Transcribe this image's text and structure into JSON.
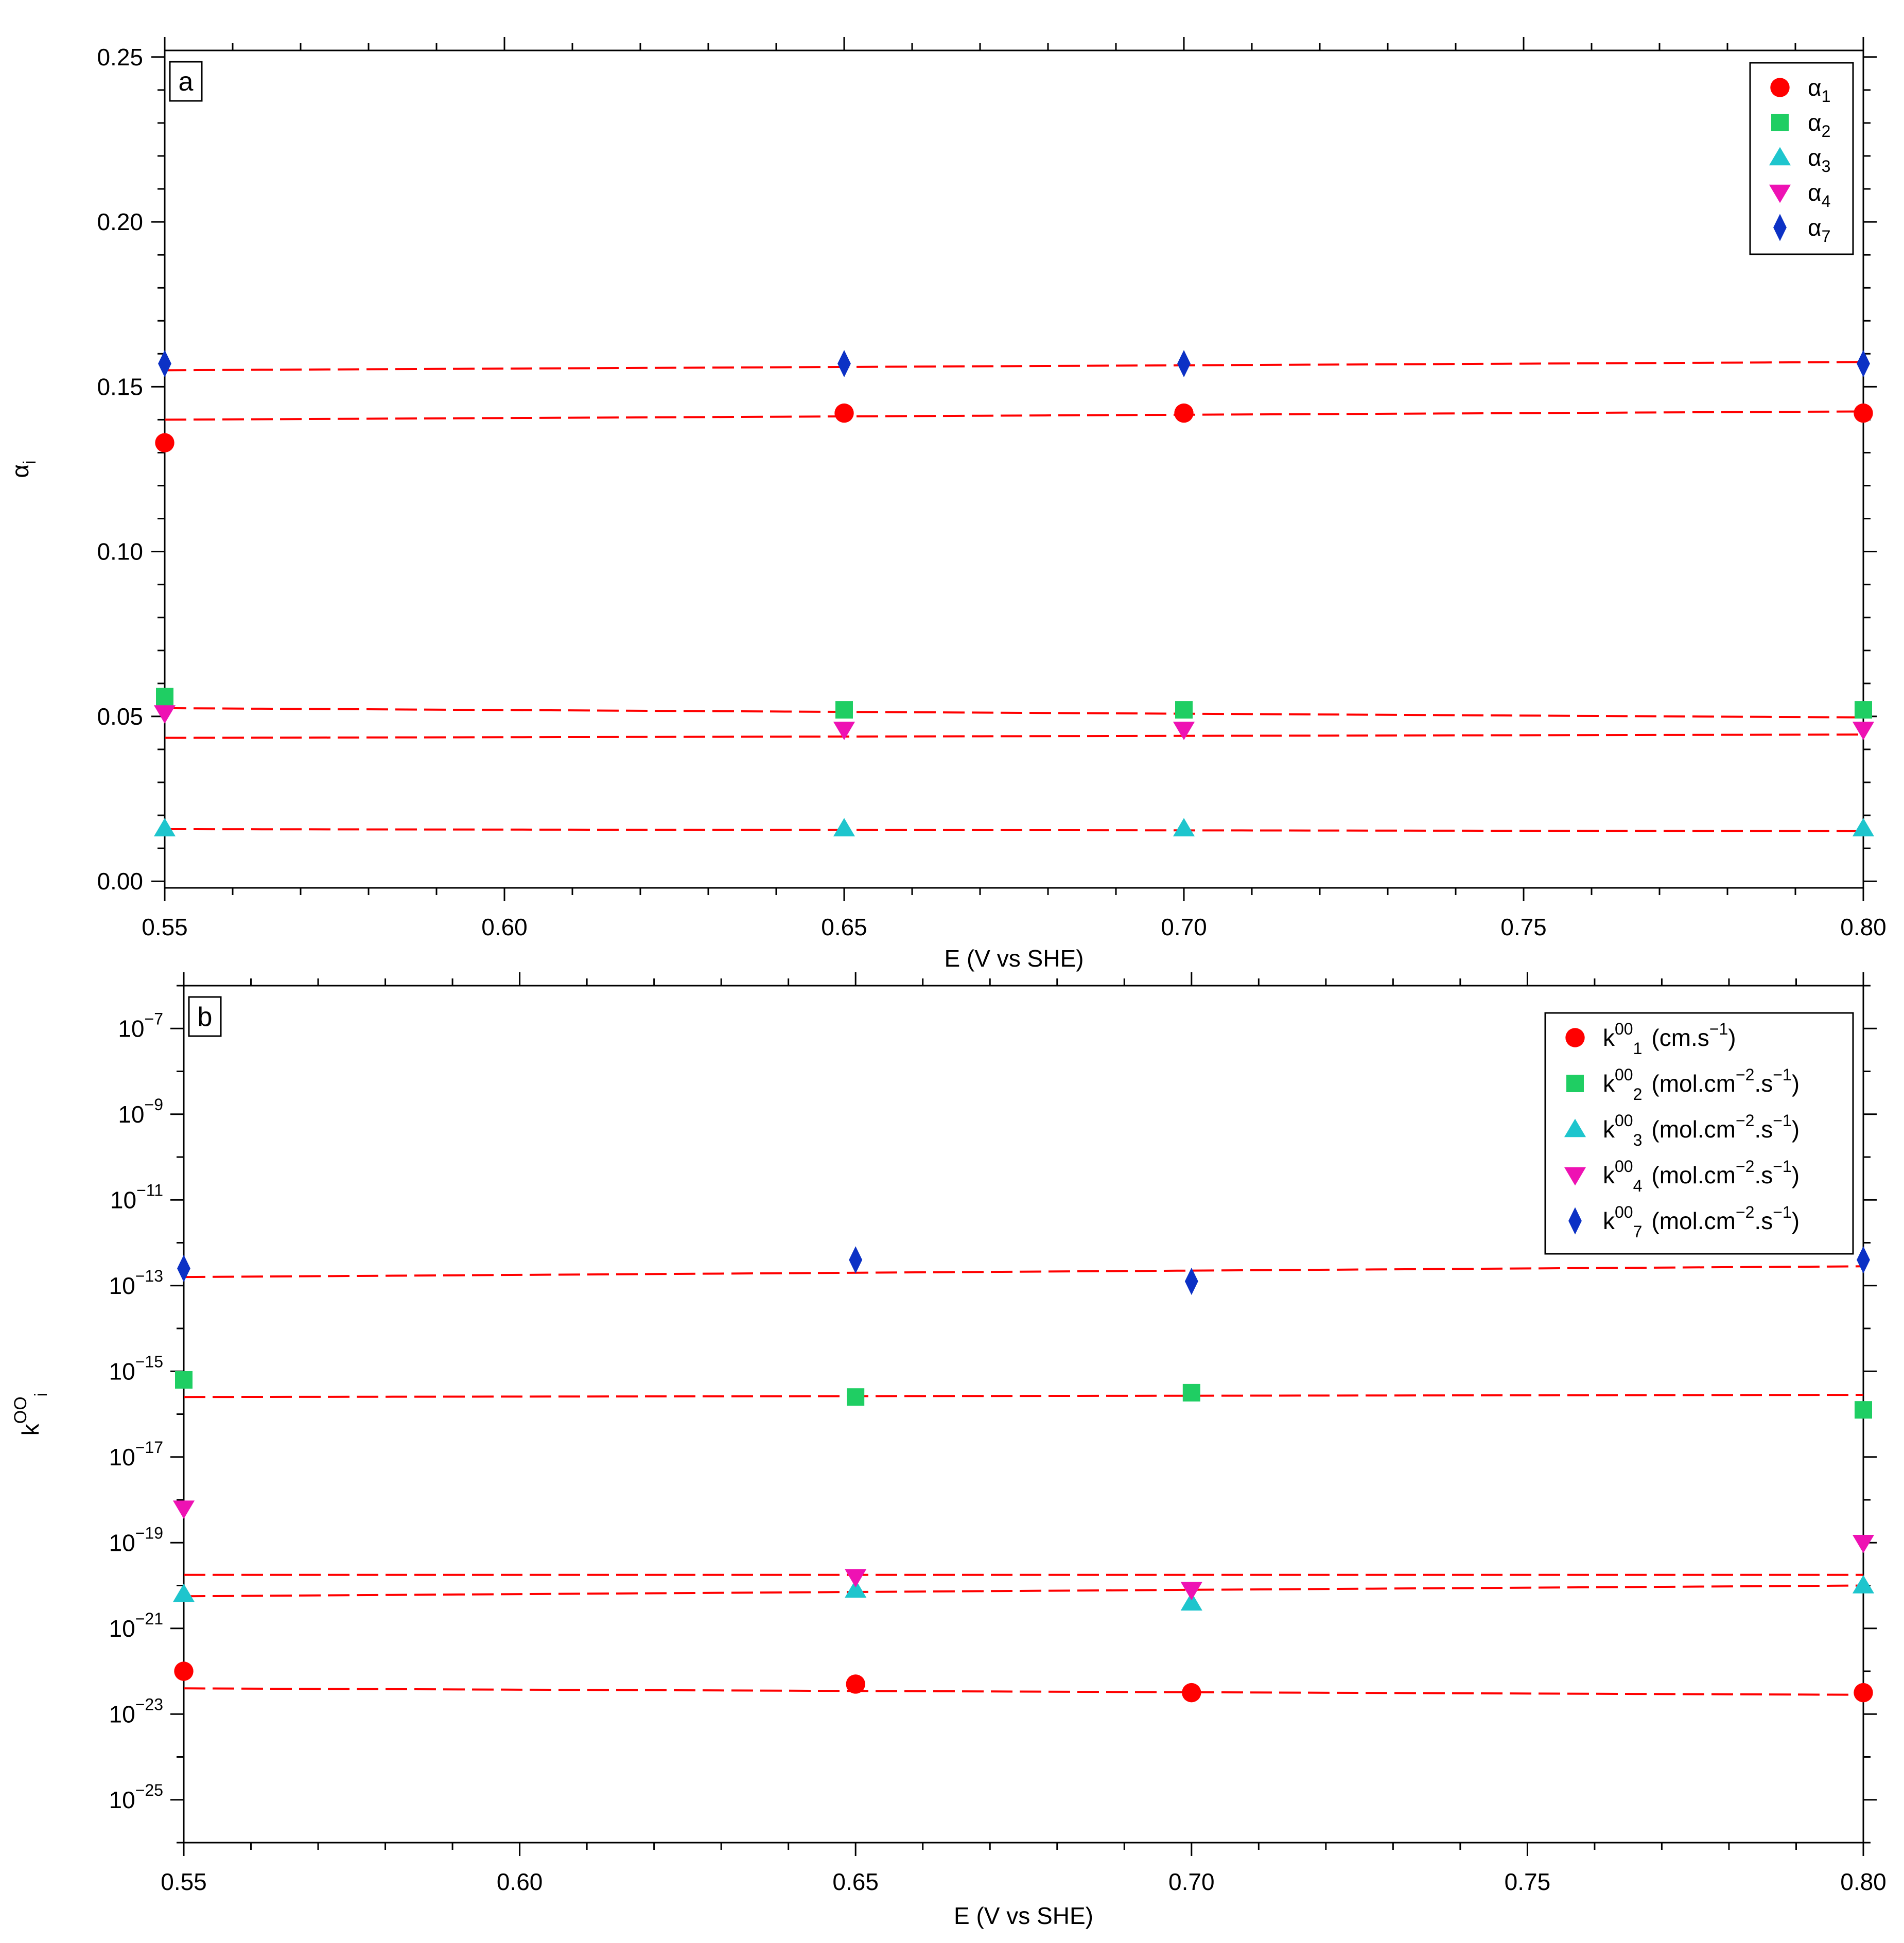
{
  "chart_data": [
    {
      "type": "scatter",
      "panel_label": "a",
      "xlabel": "E (V vs SHE)",
      "ylabel": {
        "base": "α",
        "sub": "i"
      },
      "xlim": [
        0.55,
        0.8
      ],
      "ylim": [
        -0.002,
        0.252
      ],
      "yscale": "linear",
      "xticks": [
        0.55,
        0.6,
        0.65,
        0.7,
        0.75,
        0.8
      ],
      "xtick_labels": [
        "0.55",
        "0.60",
        "0.65",
        "0.70",
        "0.75",
        "0.80"
      ],
      "yticks": [
        0.0,
        0.05,
        0.1,
        0.15,
        0.2,
        0.25
      ],
      "ytick_labels": [
        "0.00",
        "0.05",
        "0.10",
        "0.15",
        "0.20",
        "0.25"
      ],
      "x": [
        0.55,
        0.65,
        0.7,
        0.8
      ],
      "legend_position": "top-right",
      "series": [
        {
          "key": "a1",
          "base": "α",
          "sub": "1",
          "marker": "circle",
          "color": "#ff0000",
          "values": [
            0.133,
            0.142,
            0.142,
            0.142
          ],
          "fit": [
            0.14,
            0.1425
          ]
        },
        {
          "key": "a2",
          "base": "α",
          "sub": "2",
          "marker": "square",
          "color": "#1fce63",
          "values": [
            0.056,
            0.052,
            0.052,
            0.052
          ],
          "fit": [
            0.0525,
            0.0497
          ]
        },
        {
          "key": "a3",
          "base": "α",
          "sub": "3",
          "marker": "triangle-up",
          "color": "#1ec5cd",
          "values": [
            0.016,
            0.016,
            0.016,
            0.016
          ],
          "fit": [
            0.0158,
            0.0152
          ]
        },
        {
          "key": "a4",
          "base": "α",
          "sub": "4",
          "marker": "triangle-down",
          "color": "#ee12b3",
          "values": [
            0.051,
            0.046,
            0.046,
            0.046
          ],
          "fit": [
            0.0435,
            0.0445
          ]
        },
        {
          "key": "a7",
          "base": "α",
          "sub": "7",
          "marker": "diamond",
          "color": "#0c31c5",
          "values": [
            0.157,
            0.157,
            0.157,
            0.157
          ],
          "fit": [
            0.155,
            0.1575
          ]
        }
      ]
    },
    {
      "type": "scatter",
      "panel_label": "b",
      "xlabel": "E (V vs SHE)",
      "ylabel": {
        "base": "k",
        "sup": "OO",
        "sub": "i"
      },
      "xlim": [
        0.55,
        0.8
      ],
      "ylim_log10": [
        -26.0,
        -6.0
      ],
      "yscale": "log",
      "xticks": [
        0.55,
        0.6,
        0.65,
        0.7,
        0.75,
        0.8
      ],
      "xtick_labels": [
        "0.55",
        "0.60",
        "0.65",
        "0.70",
        "0.75",
        "0.80"
      ],
      "yticks_log10": [
        -25,
        -23,
        -21,
        -19,
        -17,
        -15,
        -13,
        -11,
        -9,
        -7
      ],
      "ytick_labels": [
        {
          "base": "10",
          "exp": "−25"
        },
        {
          "base": "10",
          "exp": "−23"
        },
        {
          "base": "10",
          "exp": "−21"
        },
        {
          "base": "10",
          "exp": "−19"
        },
        {
          "base": "10",
          "exp": "−17"
        },
        {
          "base": "10",
          "exp": "−15"
        },
        {
          "base": "10",
          "exp": "−13"
        },
        {
          "base": "10",
          "exp": "−11"
        },
        {
          "base": "10",
          "exp": "−9"
        },
        {
          "base": "10",
          "exp": "−7"
        }
      ],
      "x": [
        0.55,
        0.65,
        0.7,
        0.8
      ],
      "legend_position": "top-right",
      "series": [
        {
          "key": "k1",
          "base": "k",
          "sup": "00",
          "sub": "1",
          "unit": "(cm.s",
          "unit_exp": "−1",
          "unit_close": ")",
          "marker": "circle",
          "color": "#ff0000",
          "values_log10": [
            -22.0,
            -22.3,
            -22.5,
            -22.5
          ],
          "fit_log10": [
            -22.4,
            -22.55
          ]
        },
        {
          "key": "k2",
          "base": "k",
          "sup": "00",
          "sub": "2",
          "unit": "(mol.cm",
          "unit_exp": "−2",
          "unit_mid": ".s",
          "unit_exp2": "−1",
          "unit_close": ")",
          "marker": "square",
          "color": "#1fce63",
          "values_log10": [
            -15.2,
            -15.6,
            -15.5,
            -15.9
          ],
          "fit_log10": [
            -15.6,
            -15.55
          ]
        },
        {
          "key": "k3",
          "base": "k",
          "sup": "00",
          "sub": "3",
          "unit": "(mol.cm",
          "unit_exp": "−2",
          "unit_mid": ".s",
          "unit_exp2": "−1",
          "unit_close": ")",
          "marker": "triangle-up",
          "color": "#1ec5cd",
          "values_log10": [
            -20.2,
            -20.1,
            -20.4,
            -20.0
          ],
          "fit_log10": [
            -20.25,
            -20.0
          ]
        },
        {
          "key": "k4",
          "base": "k",
          "sup": "00",
          "sub": "4",
          "unit": "(mol.cm",
          "unit_exp": "−2",
          "unit_mid": ".s",
          "unit_exp2": "−1",
          "unit_close": ")",
          "marker": "triangle-down",
          "color": "#ee12b3",
          "values_log10": [
            -18.2,
            -19.8,
            -20.1,
            -19.0
          ],
          "fit_log10": [
            -19.75,
            -19.75
          ]
        },
        {
          "key": "k7",
          "base": "k",
          "sup": "00",
          "sub": "7",
          "unit": "(mol.cm",
          "unit_exp": "−2",
          "unit_mid": ".s",
          "unit_exp2": "−1",
          "unit_close": ")",
          "marker": "diamond",
          "color": "#0c31c5",
          "values_log10": [
            -12.6,
            -12.4,
            -12.9,
            -12.4
          ],
          "fit_log10": [
            -12.8,
            -12.55
          ]
        }
      ]
    }
  ]
}
